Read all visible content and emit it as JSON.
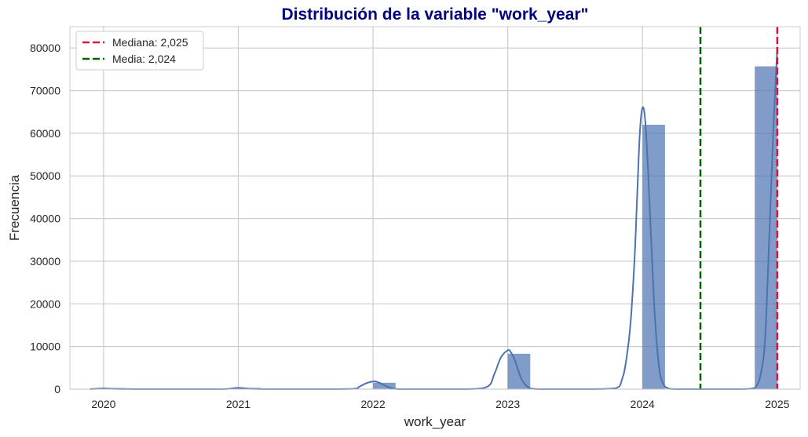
{
  "chart_data": {
    "type": "bar",
    "title": "Distribución de la variable \"work_year\"",
    "xlabel": "work_year",
    "ylabel": "Frecuencia",
    "xlim": [
      2019.75,
      2025.17
    ],
    "ylim": [
      0,
      85000
    ],
    "xticks": [
      2020,
      2021,
      2022,
      2023,
      2024,
      2025
    ],
    "xtick_labels": [
      "2020",
      "2021",
      "2022",
      "2023",
      "2024",
      "2025"
    ],
    "yticks": [
      0,
      10000,
      20000,
      30000,
      40000,
      50000,
      60000,
      70000,
      80000
    ],
    "ytick_labels": [
      "0",
      "10000",
      "20000",
      "30000",
      "40000",
      "50000",
      "60000",
      "70000",
      "80000"
    ],
    "grid": true,
    "legend_position": "top-left",
    "bar_width": 0.167,
    "bars": [
      {
        "x_start": 2020.0,
        "value": 250
      },
      {
        "x_start": 2021.0,
        "value": 300
      },
      {
        "x_start": 2022.0,
        "value": 1500
      },
      {
        "x_start": 2023.0,
        "value": 8300
      },
      {
        "x_start": 2024.0,
        "value": 62000
      },
      {
        "x_start": 2024.833,
        "value": 75700
      }
    ],
    "kde": {
      "x": [
        2019.9,
        2020.0,
        2020.1,
        2020.3,
        2020.5,
        2020.7,
        2020.9,
        2021.0,
        2021.1,
        2021.3,
        2021.6,
        2021.85,
        2021.9,
        2021.95,
        2022.0,
        2022.03,
        2022.08,
        2022.13,
        2022.2,
        2022.4,
        2022.7,
        2022.85,
        2022.9,
        2022.95,
        2023.0,
        2023.02,
        2023.05,
        2023.1,
        2023.15,
        2023.2,
        2023.3,
        2023.6,
        2023.8,
        2023.85,
        2023.88,
        2023.91,
        2023.94,
        2023.96,
        2023.98,
        2024.0,
        2024.02,
        2024.04,
        2024.06,
        2024.09,
        2024.12,
        2024.15,
        2024.2,
        2024.3,
        2024.6,
        2024.8,
        2024.85,
        2024.88,
        2024.91,
        2024.94,
        2024.97,
        2025.0
      ],
      "y": [
        0,
        150,
        40,
        0,
        0,
        0,
        30,
        300,
        60,
        0,
        0,
        60,
        600,
        1400,
        1800,
        1700,
        1000,
        300,
        0,
        0,
        0,
        600,
        3500,
        7500,
        9100,
        8800,
        7000,
        2500,
        500,
        50,
        0,
        0,
        200,
        2500,
        7000,
        15000,
        30000,
        45000,
        60000,
        66000,
        63000,
        52000,
        38000,
        18000,
        6000,
        1500,
        100,
        0,
        0,
        100,
        1000,
        4000,
        12000,
        35000,
        60000,
        80000
      ]
    },
    "reference_lines": [
      {
        "name": "Mediana: 2,025",
        "x": 2025.0,
        "color": "#dc143c"
      },
      {
        "name": "Media: 2,024",
        "x": 2024.43,
        "color": "#006400"
      }
    ],
    "colors": {
      "bar": "#4c72b0",
      "bar_opacity": 0.7,
      "kde_line": "#4c72b0",
      "grid": "#cccccc",
      "title": "#000080",
      "axis_text": "#262626"
    }
  }
}
